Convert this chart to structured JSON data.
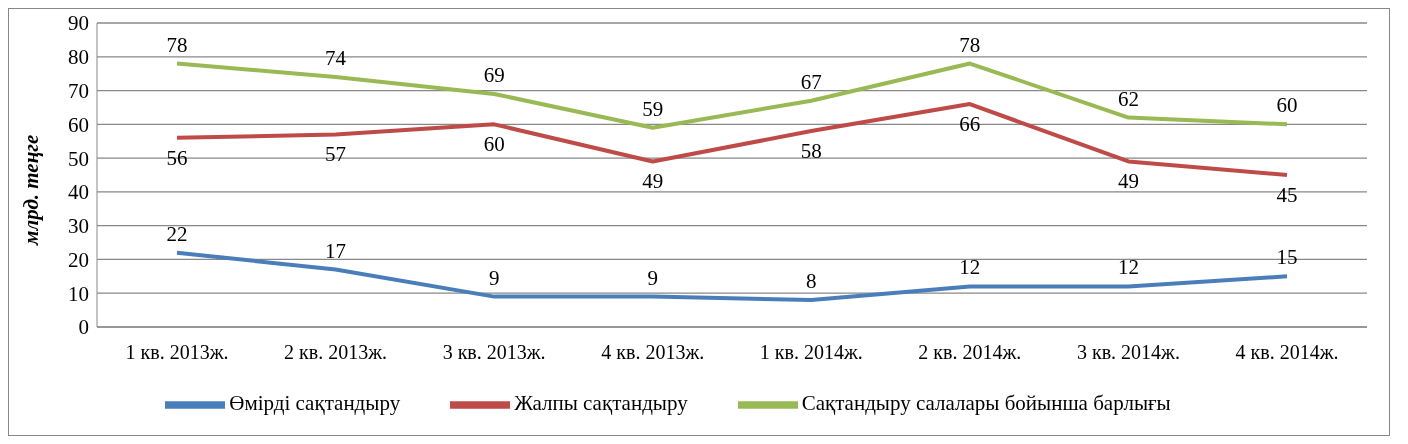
{
  "chart_data": {
    "type": "line",
    "ylabel": "млрд. теңге",
    "categories": [
      "1 кв. 2013ж.",
      "2 кв. 2013ж.",
      "3 кв. 2013ж.",
      "4 кв. 2013ж.",
      "1 кв. 2014ж.",
      "2 кв. 2014ж.",
      "3 кв. 2014ж.",
      "4 кв. 2014ж."
    ],
    "series": [
      {
        "name": "Өмірді сақтандыру",
        "color": "#4a7ebb",
        "values": [
          22,
          17,
          9,
          9,
          8,
          12,
          12,
          15
        ]
      },
      {
        "name": "Жалпы сақтандыру",
        "color": "#be4b48",
        "values": [
          56,
          57,
          60,
          49,
          58,
          66,
          49,
          45
        ]
      },
      {
        "name": "Сақтандыру салалары бойынша барлығы",
        "color": "#98b954",
        "values": [
          78,
          74,
          69,
          59,
          67,
          78,
          62,
          60
        ]
      }
    ],
    "ylim": [
      0,
      90
    ],
    "yticks": [
      0,
      10,
      20,
      30,
      40,
      50,
      60,
      70,
      80,
      90
    ],
    "grid": "y",
    "legend": "bottom",
    "data_labels": true,
    "marker": "none",
    "line_style": "solid"
  }
}
